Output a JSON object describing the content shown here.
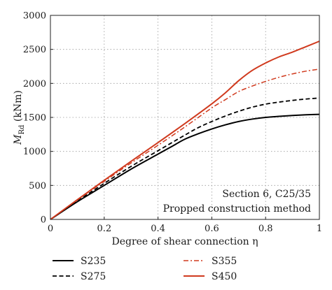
{
  "chart_data": {
    "type": "line",
    "xlabel": "Degree of shear connection η",
    "ylabel_main": "M",
    "ylabel_sub": "Rd",
    "ylabel_unit": " (kNm)",
    "xlim": [
      0,
      1
    ],
    "ylim": [
      0,
      3000
    ],
    "xticks": [
      0,
      0.2,
      0.4,
      0.6,
      0.8,
      1
    ],
    "xtick_labels": [
      "0",
      "0.2",
      "0.4",
      "0.6",
      "0.8",
      "1"
    ],
    "yticks": [
      0,
      500,
      1000,
      1500,
      2000,
      2500,
      3000
    ],
    "ytick_labels": [
      "0",
      "500",
      "1000",
      "1500",
      "2000",
      "2500",
      "3000"
    ],
    "grid": true,
    "legend_position": "below",
    "annotations": [
      "Section 6, C25/35",
      "Propped construction method"
    ],
    "series": [
      {
        "name": "S235",
        "color": "#000000",
        "dash": "solid",
        "x": [
          0,
          0.1,
          0.2,
          0.3,
          0.4,
          0.45,
          0.5,
          0.55,
          0.6,
          0.65,
          0.7,
          0.75,
          0.8,
          0.85,
          0.9,
          0.95,
          1.0
        ],
        "y": [
          0,
          260,
          500,
          740,
          960,
          1070,
          1180,
          1260,
          1330,
          1390,
          1440,
          1475,
          1500,
          1515,
          1528,
          1538,
          1545
        ]
      },
      {
        "name": "S275",
        "color": "#000000",
        "dash": "dashed",
        "x": [
          0,
          0.1,
          0.2,
          0.3,
          0.4,
          0.5,
          0.55,
          0.6,
          0.65,
          0.7,
          0.75,
          0.8,
          0.85,
          0.9,
          0.95,
          1.0
        ],
        "y": [
          0,
          270,
          530,
          780,
          1010,
          1240,
          1350,
          1440,
          1520,
          1590,
          1650,
          1695,
          1725,
          1750,
          1770,
          1785
        ]
      },
      {
        "name": "S355",
        "color": "#d03a1e",
        "dash": "dashdot",
        "x": [
          0,
          0.1,
          0.2,
          0.3,
          0.4,
          0.5,
          0.6,
          0.65,
          0.7,
          0.75,
          0.8,
          0.85,
          0.9,
          0.95,
          1.0
        ],
        "y": [
          0,
          285,
          560,
          830,
          1090,
          1360,
          1640,
          1760,
          1880,
          1960,
          2030,
          2090,
          2140,
          2180,
          2210
        ]
      },
      {
        "name": "S450",
        "color": "#d03a1e",
        "dash": "solid",
        "x": [
          0,
          0.1,
          0.2,
          0.3,
          0.4,
          0.5,
          0.6,
          0.65,
          0.7,
          0.75,
          0.8,
          0.85,
          0.9,
          0.95,
          1.0
        ],
        "y": [
          0,
          290,
          575,
          855,
          1130,
          1410,
          1700,
          1860,
          2040,
          2190,
          2300,
          2390,
          2460,
          2540,
          2620
        ]
      }
    ]
  }
}
